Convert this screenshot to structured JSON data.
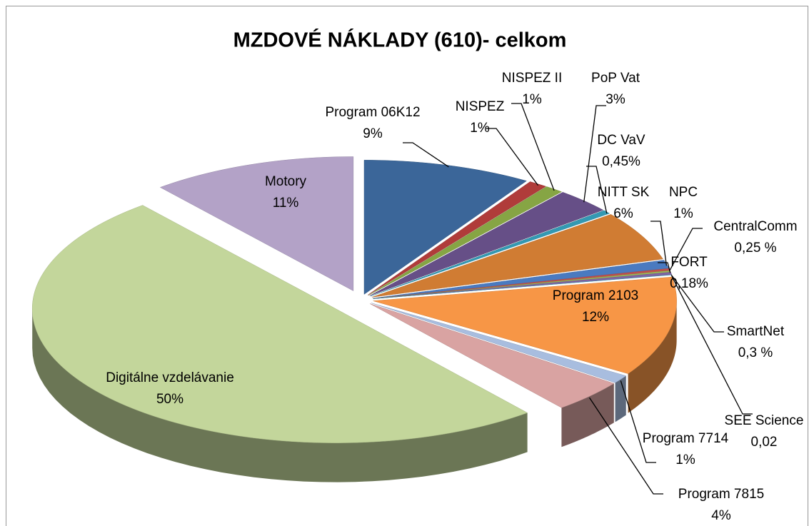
{
  "chart_data": {
    "type": "pie3d",
    "title": "MZDOVÉ NÁKLADY (610)- celkom",
    "categories": [
      "Program 06K12",
      "NISPEZ",
      "NISPEZ II",
      "PoP Vat",
      "DC VaV",
      "NITT SK",
      "NPC",
      "CentralComm",
      "FORT",
      "SmartNet",
      "SEE Science",
      "Program 2103",
      "Program 7714",
      "Program 7815",
      "Digitálne vzdelávanie",
      "Motory"
    ],
    "values": [
      9,
      1,
      1,
      3,
      0.45,
      6,
      1,
      0.25,
      0.18,
      0.3,
      0.02,
      12,
      1,
      4,
      50,
      11
    ],
    "value_labels": [
      "9%",
      "1%",
      "1%",
      "3%",
      "0,45%",
      "6%",
      "1%",
      "0,25 %",
      "0,18%",
      "0,3 %",
      "0,02",
      "12%",
      "1%",
      "4%",
      "50%",
      "11%"
    ],
    "colors": [
      "#3b6699",
      "#b03c3a",
      "#86a544",
      "#664f87",
      "#3399b3",
      "#d07c33",
      "#4a7ac0",
      "#c0504d",
      "#9bbb59",
      "#8064a2",
      "#4bacc6",
      "#f79646",
      "#a8bddf",
      "#d9a3a2",
      "#c3d69b",
      "#b3a2c7"
    ]
  }
}
